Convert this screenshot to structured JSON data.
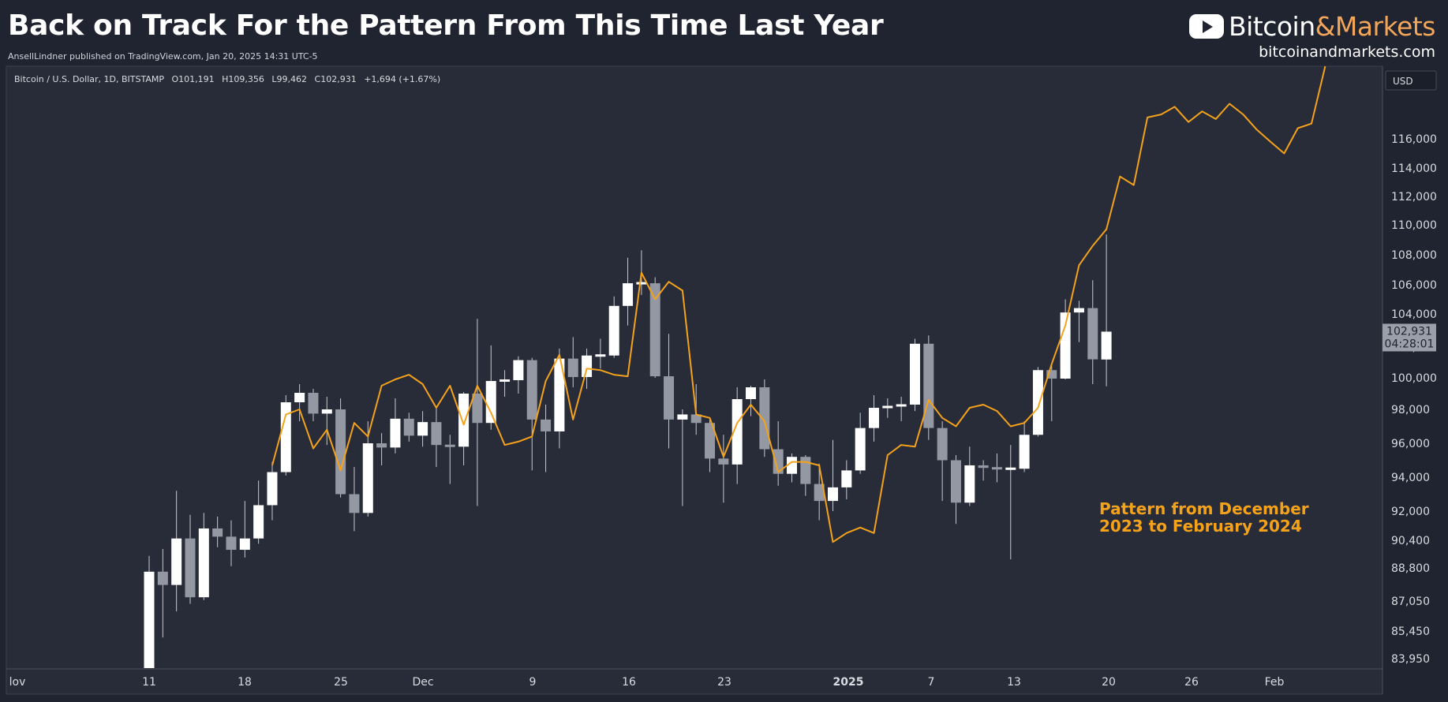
{
  "header": {
    "title": "Back on Track For the Pattern From This Time Last Year",
    "publisher": "AnsellLindner published on TradingView.com, Jan 20, 2025 14:31 UTC-5"
  },
  "brand": {
    "name_part1": "Bitcoin",
    "name_amp": "&",
    "name_part2": "Markets",
    "url": "bitcoinandmarkets.com",
    "icon": "youtube-play-icon"
  },
  "chart_data": {
    "type": "candlestick",
    "legend": {
      "symbol": "Bitcoin / U.S. Dollar, 1D, BITSTAMP",
      "open": "O101,191",
      "high": "H109,356",
      "low": "L99,462",
      "close": "C102,931",
      "change": "+1,694 (+1.67%)"
    },
    "currency": "USD",
    "price_tag": {
      "value": "102,931",
      "countdown": "04:28:01"
    },
    "y_ticks": [
      "116,000",
      "114,000",
      "112,000",
      "110,000",
      "108,000",
      "106,000",
      "104,000",
      "102,000",
      "100,000",
      "98,000",
      "96,000",
      "94,000",
      "92,000",
      "90,400",
      "88,800",
      "87,050",
      "85,450",
      "83,950"
    ],
    "x_ticks": [
      {
        "label": "lov",
        "bold": false
      },
      {
        "label": "11",
        "bold": false
      },
      {
        "label": "18",
        "bold": false
      },
      {
        "label": "25",
        "bold": false
      },
      {
        "label": "Dec",
        "bold": false
      },
      {
        "label": "9",
        "bold": false
      },
      {
        "label": "16",
        "bold": false
      },
      {
        "label": "23",
        "bold": false
      },
      {
        "label": "2025",
        "bold": true
      },
      {
        "label": "7",
        "bold": false
      },
      {
        "label": "13",
        "bold": false
      },
      {
        "label": "20",
        "bold": false
      },
      {
        "label": "26",
        "bold": false
      },
      {
        "label": "Feb",
        "bold": false
      }
    ],
    "candles": [
      {
        "date": "2024-11-11",
        "o": 80400,
        "h": 89500,
        "l": 80200,
        "c": 88600
      },
      {
        "date": "2024-11-12",
        "o": 88600,
        "h": 89900,
        "l": 85100,
        "c": 87900
      },
      {
        "date": "2024-11-13",
        "o": 87900,
        "h": 93200,
        "l": 86500,
        "c": 90500
      },
      {
        "date": "2024-11-14",
        "o": 90500,
        "h": 91800,
        "l": 86900,
        "c": 87250
      },
      {
        "date": "2024-11-15",
        "o": 87250,
        "h": 91900,
        "l": 87100,
        "c": 91050
      },
      {
        "date": "2024-11-16",
        "o": 91050,
        "h": 91700,
        "l": 90000,
        "c": 90600
      },
      {
        "date": "2024-11-17",
        "o": 90600,
        "h": 91500,
        "l": 88900,
        "c": 89850
      },
      {
        "date": "2024-11-18",
        "o": 89850,
        "h": 92600,
        "l": 89400,
        "c": 90500
      },
      {
        "date": "2024-11-19",
        "o": 90500,
        "h": 93800,
        "l": 90200,
        "c": 92350
      },
      {
        "date": "2024-11-20",
        "o": 92350,
        "h": 94900,
        "l": 91500,
        "c": 94300
      },
      {
        "date": "2024-11-21",
        "o": 94300,
        "h": 98900,
        "l": 94100,
        "c": 98450
      },
      {
        "date": "2024-11-22",
        "o": 98450,
        "h": 99600,
        "l": 97300,
        "c": 99050
      },
      {
        "date": "2024-11-23",
        "o": 99050,
        "h": 99300,
        "l": 97300,
        "c": 97750
      },
      {
        "date": "2024-11-24",
        "o": 97750,
        "h": 98800,
        "l": 95900,
        "c": 98000
      },
      {
        "date": "2024-11-25",
        "o": 98000,
        "h": 98700,
        "l": 92800,
        "c": 93000
      },
      {
        "date": "2024-11-26",
        "o": 93000,
        "h": 94600,
        "l": 90900,
        "c": 91900
      },
      {
        "date": "2024-11-27",
        "o": 91900,
        "h": 97300,
        "l": 91700,
        "c": 96000
      },
      {
        "date": "2024-11-28",
        "o": 96000,
        "h": 96600,
        "l": 94700,
        "c": 95750
      },
      {
        "date": "2024-11-29",
        "o": 95750,
        "h": 98700,
        "l": 95400,
        "c": 97450
      },
      {
        "date": "2024-11-30",
        "o": 97450,
        "h": 97800,
        "l": 96100,
        "c": 96450
      },
      {
        "date": "2024-12-01",
        "o": 96450,
        "h": 97900,
        "l": 95800,
        "c": 97250
      },
      {
        "date": "2024-12-02",
        "o": 97250,
        "h": 98200,
        "l": 94600,
        "c": 95900
      },
      {
        "date": "2024-12-03",
        "o": 95900,
        "h": 96500,
        "l": 93600,
        "c": 95800
      },
      {
        "date": "2024-12-04",
        "o": 95800,
        "h": 99100,
        "l": 94700,
        "c": 99000
      },
      {
        "date": "2024-12-05",
        "o": 99000,
        "h": 103700,
        "l": 92300,
        "c": 97200
      },
      {
        "date": "2024-12-06",
        "o": 97200,
        "h": 102100,
        "l": 96800,
        "c": 99800
      },
      {
        "date": "2024-12-07",
        "o": 99800,
        "h": 100500,
        "l": 98800,
        "c": 99850
      },
      {
        "date": "2024-12-08",
        "o": 99850,
        "h": 101400,
        "l": 99000,
        "c": 101150
      },
      {
        "date": "2024-12-09",
        "o": 101150,
        "h": 101300,
        "l": 94400,
        "c": 97400
      },
      {
        "date": "2024-12-10",
        "o": 97400,
        "h": 98300,
        "l": 94300,
        "c": 96700
      },
      {
        "date": "2024-12-11",
        "o": 96700,
        "h": 101900,
        "l": 95700,
        "c": 101250
      },
      {
        "date": "2024-12-12",
        "o": 101250,
        "h": 102600,
        "l": 99400,
        "c": 100050
      },
      {
        "date": "2024-12-13",
        "o": 100050,
        "h": 101900,
        "l": 99300,
        "c": 101450
      },
      {
        "date": "2024-12-14",
        "o": 101450,
        "h": 102500,
        "l": 100600,
        "c": 101450
      },
      {
        "date": "2024-12-15",
        "o": 101450,
        "h": 105200,
        "l": 101300,
        "c": 104550
      },
      {
        "date": "2024-12-16",
        "o": 104550,
        "h": 107800,
        "l": 103300,
        "c": 106100
      },
      {
        "date": "2024-12-17",
        "o": 106100,
        "h": 108300,
        "l": 105300,
        "c": 106100
      },
      {
        "date": "2024-12-18",
        "o": 106100,
        "h": 106500,
        "l": 100000,
        "c": 100100
      },
      {
        "date": "2024-12-19",
        "o": 100100,
        "h": 102800,
        "l": 95700,
        "c": 97400
      },
      {
        "date": "2024-12-20",
        "o": 97400,
        "h": 98000,
        "l": 92300,
        "c": 97700
      },
      {
        "date": "2024-12-21",
        "o": 97700,
        "h": 99600,
        "l": 96500,
        "c": 97200
      },
      {
        "date": "2024-12-22",
        "o": 97200,
        "h": 97400,
        "l": 94300,
        "c": 95100
      },
      {
        "date": "2024-12-23",
        "o": 95100,
        "h": 96500,
        "l": 92500,
        "c": 94750
      },
      {
        "date": "2024-12-24",
        "o": 94750,
        "h": 99400,
        "l": 93600,
        "c": 98650
      },
      {
        "date": "2024-12-25",
        "o": 98650,
        "h": 99500,
        "l": 97600,
        "c": 99400
      },
      {
        "date": "2024-12-26",
        "o": 99400,
        "h": 99900,
        "l": 95200,
        "c": 95650
      },
      {
        "date": "2024-12-27",
        "o": 95650,
        "h": 97300,
        "l": 93500,
        "c": 94200
      },
      {
        "date": "2024-12-28",
        "o": 94200,
        "h": 95400,
        "l": 93700,
        "c": 95200
      },
      {
        "date": "2024-12-29",
        "o": 95200,
        "h": 95300,
        "l": 92900,
        "c": 93600
      },
      {
        "date": "2024-12-30",
        "o": 93600,
        "h": 94800,
        "l": 91500,
        "c": 92600
      },
      {
        "date": "2024-12-31",
        "o": 92600,
        "h": 96200,
        "l": 92000,
        "c": 93400
      },
      {
        "date": "2025-01-01",
        "o": 93400,
        "h": 95000,
        "l": 92700,
        "c": 94400
      },
      {
        "date": "2025-01-02",
        "o": 94400,
        "h": 97800,
        "l": 94200,
        "c": 96900
      },
      {
        "date": "2025-01-03",
        "o": 96900,
        "h": 98900,
        "l": 96100,
        "c": 98100
      },
      {
        "date": "2025-01-04",
        "o": 98100,
        "h": 98700,
        "l": 97500,
        "c": 98200
      },
      {
        "date": "2025-01-05",
        "o": 98200,
        "h": 98800,
        "l": 97300,
        "c": 98300
      },
      {
        "date": "2025-01-06",
        "o": 98300,
        "h": 102500,
        "l": 97900,
        "c": 102200
      },
      {
        "date": "2025-01-07",
        "o": 102200,
        "h": 102700,
        "l": 96200,
        "c": 96900
      },
      {
        "date": "2025-01-08",
        "o": 96900,
        "h": 97300,
        "l": 92600,
        "c": 95000
      },
      {
        "date": "2025-01-09",
        "o": 95000,
        "h": 95300,
        "l": 91300,
        "c": 92500
      },
      {
        "date": "2025-01-10",
        "o": 92500,
        "h": 95800,
        "l": 92300,
        "c": 94700
      },
      {
        "date": "2025-01-11",
        "o": 94700,
        "h": 95000,
        "l": 93800,
        "c": 94550
      },
      {
        "date": "2025-01-12",
        "o": 94550,
        "h": 95400,
        "l": 93700,
        "c": 94500
      },
      {
        "date": "2025-01-13",
        "o": 94500,
        "h": 95900,
        "l": 89300,
        "c": 94500
      },
      {
        "date": "2025-01-14",
        "o": 94500,
        "h": 97300,
        "l": 94300,
        "c": 96500
      },
      {
        "date": "2025-01-15",
        "o": 96500,
        "h": 100700,
        "l": 96400,
        "c": 100500
      },
      {
        "date": "2025-01-16",
        "o": 100500,
        "h": 100800,
        "l": 97300,
        "c": 99950
      },
      {
        "date": "2025-01-17",
        "o": 99950,
        "h": 105000,
        "l": 99900,
        "c": 104100
      },
      {
        "date": "2025-01-18",
        "o": 104100,
        "h": 104900,
        "l": 102300,
        "c": 104400
      },
      {
        "date": "2025-01-19",
        "o": 104400,
        "h": 106300,
        "l": 99600,
        "c": 101200
      },
      {
        "date": "2025-01-20",
        "o": 101191,
        "h": 109356,
        "l": 99462,
        "c": 102931
      }
    ],
    "overlay": {
      "name": "Pattern from December 2023 to February 2024",
      "annotation_line1": "Pattern from December",
      "annotation_line2": "2023 to February 2024",
      "color": "#f5a21b",
      "values": [
        {
          "date": "2024-11-20",
          "v": 94700
        },
        {
          "date": "2024-11-21",
          "v": 97700
        },
        {
          "date": "2024-11-22",
          "v": 98000
        },
        {
          "date": "2024-11-23",
          "v": 95700
        },
        {
          "date": "2024-11-24",
          "v": 96800
        },
        {
          "date": "2024-11-25",
          "v": 94400
        },
        {
          "date": "2024-11-26",
          "v": 97200
        },
        {
          "date": "2024-11-27",
          "v": 96400
        },
        {
          "date": "2024-11-28",
          "v": 99500
        },
        {
          "date": "2024-11-29",
          "v": 99900
        },
        {
          "date": "2024-11-30",
          "v": 100200
        },
        {
          "date": "2024-12-01",
          "v": 99600
        },
        {
          "date": "2024-12-02",
          "v": 98100
        },
        {
          "date": "2024-12-03",
          "v": 99500
        },
        {
          "date": "2024-12-04",
          "v": 97100
        },
        {
          "date": "2024-12-05",
          "v": 99500
        },
        {
          "date": "2024-12-06",
          "v": 97800
        },
        {
          "date": "2024-12-07",
          "v": 95900
        },
        {
          "date": "2024-12-08",
          "v": 96100
        },
        {
          "date": "2024-12-09",
          "v": 96400
        },
        {
          "date": "2024-12-10",
          "v": 99800
        },
        {
          "date": "2024-12-11",
          "v": 101500
        },
        {
          "date": "2024-12-12",
          "v": 97400
        },
        {
          "date": "2024-12-13",
          "v": 100600
        },
        {
          "date": "2024-12-14",
          "v": 100500
        },
        {
          "date": "2024-12-15",
          "v": 100200
        },
        {
          "date": "2024-12-16",
          "v": 100100
        },
        {
          "date": "2024-12-17",
          "v": 106800
        },
        {
          "date": "2024-12-18",
          "v": 105000
        },
        {
          "date": "2024-12-19",
          "v": 106200
        },
        {
          "date": "2024-12-20",
          "v": 105600
        },
        {
          "date": "2024-12-21",
          "v": 97700
        },
        {
          "date": "2024-12-22",
          "v": 97500
        },
        {
          "date": "2024-12-23",
          "v": 95200
        },
        {
          "date": "2024-12-24",
          "v": 97200
        },
        {
          "date": "2024-12-25",
          "v": 98300
        },
        {
          "date": "2024-12-26",
          "v": 97300
        },
        {
          "date": "2024-12-27",
          "v": 94300
        },
        {
          "date": "2024-12-28",
          "v": 94900
        },
        {
          "date": "2024-12-29",
          "v": 94900
        },
        {
          "date": "2024-12-30",
          "v": 94700
        },
        {
          "date": "2024-12-31",
          "v": 90300
        },
        {
          "date": "2025-01-01",
          "v": 90800
        },
        {
          "date": "2025-01-02",
          "v": 91100
        },
        {
          "date": "2025-01-03",
          "v": 90800
        },
        {
          "date": "2025-01-04",
          "v": 95300
        },
        {
          "date": "2025-01-05",
          "v": 95900
        },
        {
          "date": "2025-01-06",
          "v": 95800
        },
        {
          "date": "2025-01-07",
          "v": 98600
        },
        {
          "date": "2025-01-08",
          "v": 97500
        },
        {
          "date": "2025-01-09",
          "v": 97000
        },
        {
          "date": "2025-01-10",
          "v": 98100
        },
        {
          "date": "2025-01-11",
          "v": 98300
        },
        {
          "date": "2025-01-12",
          "v": 97900
        },
        {
          "date": "2025-01-13",
          "v": 97000
        },
        {
          "date": "2025-01-14",
          "v": 97200
        },
        {
          "date": "2025-01-15",
          "v": 98100
        },
        {
          "date": "2025-01-16",
          "v": 100900
        },
        {
          "date": "2025-01-17",
          "v": 103300
        },
        {
          "date": "2025-01-18",
          "v": 107300
        },
        {
          "date": "2025-01-19",
          "v": 108600
        },
        {
          "date": "2025-01-20",
          "v": 109700
        },
        {
          "date": "2025-01-21",
          "v": 113400
        },
        {
          "date": "2025-01-22",
          "v": 112800
        },
        {
          "date": "2025-01-23",
          "v": 117400
        },
        {
          "date": "2025-01-24",
          "v": 117600
        },
        {
          "date": "2025-01-25",
          "v": 118100
        },
        {
          "date": "2025-01-26",
          "v": 117100
        },
        {
          "date": "2025-01-27",
          "v": 117800
        },
        {
          "date": "2025-01-28",
          "v": 117300
        },
        {
          "date": "2025-01-29",
          "v": 118300
        },
        {
          "date": "2025-01-30",
          "v": 117600
        },
        {
          "date": "2025-01-31",
          "v": 116600
        },
        {
          "date": "2025-02-01",
          "v": 115800
        },
        {
          "date": "2025-02-02",
          "v": 115000
        },
        {
          "date": "2025-02-03",
          "v": 116700
        },
        {
          "date": "2025-02-04",
          "v": 117000
        },
        {
          "date": "2025-02-05",
          "v": 122000
        }
      ]
    },
    "colors": {
      "background": "#202430",
      "plot_background": "#282c38",
      "up_candle": "#ffffff",
      "down_candle": "#9498a3",
      "wick": "#c7c9cf",
      "overlay": "#f5a21b",
      "price_tag": "#9aa0a9"
    },
    "grid": false
  }
}
